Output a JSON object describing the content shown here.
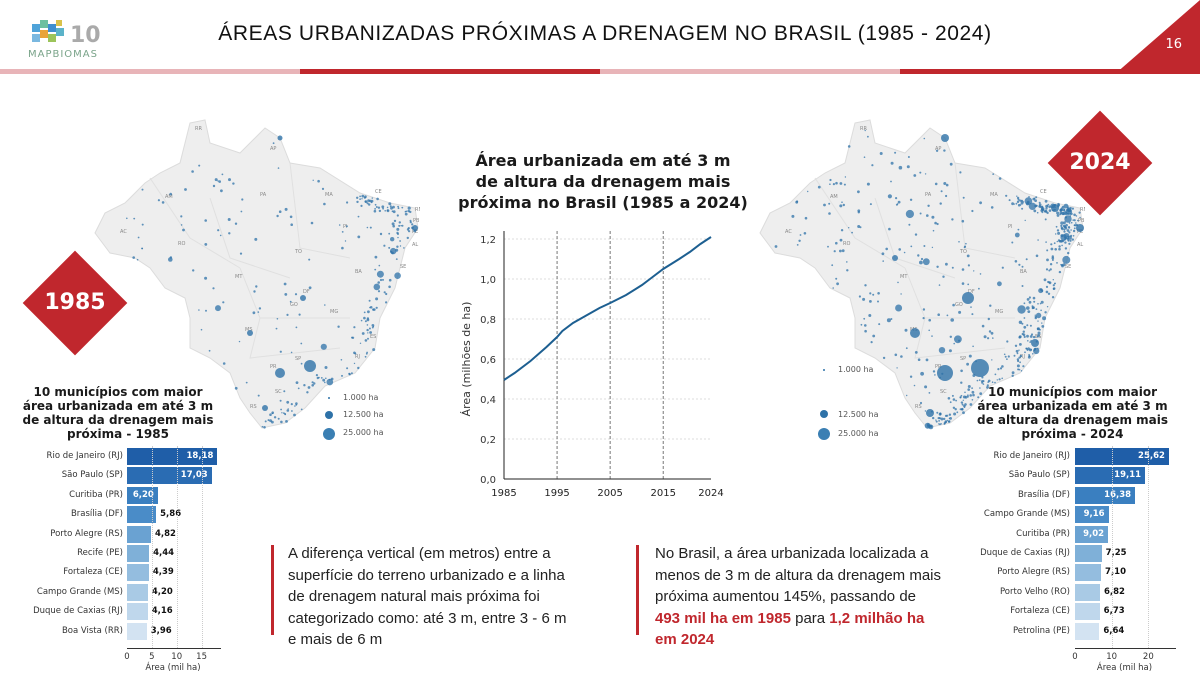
{
  "header": {
    "logo_text": "MAPBIOMAS",
    "logo_badge": "10 ANOS",
    "title": "ÁREAS URBANIZADAS PRÓXIMAS A DRENAGEM NO BRASIL (1985 - 2024)",
    "page_number": "16"
  },
  "colors": {
    "accent": "#c0272d",
    "accent_light": "#e8b4b8",
    "line": "#1d5f91",
    "dot": "#2e72a8"
  },
  "maps": [
    {
      "year_badge": "1985",
      "legend": [
        "1.000 ha",
        "12.500 ha",
        "25.000 ha"
      ]
    },
    {
      "year_badge": "2024",
      "legend": [
        "1.000 ha",
        "12.500 ha",
        "25.000 ha"
      ]
    }
  ],
  "chart_data": [
    {
      "type": "bar",
      "title": "10 municípios com maior área urbanizada em até 3 m de altura da drenagem mais próxima - 1985",
      "categories": [
        "Rio de Janeiro (RJ)",
        "São Paulo (SP)",
        "Curitiba (PR)",
        "Brasília (DF)",
        "Porto Alegre (RS)",
        "Recife (PE)",
        "Fortaleza (CE)",
        "Campo Grande (MS)",
        "Duque de Caxias (RJ)",
        "Boa Vista (RR)"
      ],
      "values": [
        18.18,
        17.03,
        6.2,
        5.86,
        4.82,
        4.44,
        4.39,
        4.2,
        4.16,
        3.96
      ],
      "value_labels": [
        "18,18",
        "17,03",
        "6,20",
        "5,86",
        "4,82",
        "4,44",
        "4,39",
        "4,20",
        "4,16",
        "3,96"
      ],
      "xlabel": "Área (mil ha)",
      "xticks": [
        "0",
        "5",
        "10",
        "15"
      ],
      "xtick_values": [
        0,
        5,
        10,
        15
      ],
      "xlim": [
        0,
        18.5
      ]
    },
    {
      "type": "line",
      "title": "Área urbanizada em até 3 m de altura da drenagem mais próxima no Brasil (1985 a 2024)",
      "title_lines": [
        "Área urbanizada em até 3 m",
        "de altura da drenagem mais",
        "próxima no Brasil (1985 a 2024)"
      ],
      "x": [
        1985,
        1987,
        1990,
        1993,
        1995,
        1996,
        1998,
        2000,
        2003,
        2005,
        2008,
        2011,
        2013,
        2015,
        2018,
        2020,
        2022,
        2024
      ],
      "y": [
        0.495,
        0.53,
        0.59,
        0.66,
        0.71,
        0.74,
        0.78,
        0.81,
        0.855,
        0.88,
        0.92,
        0.97,
        1.01,
        1.05,
        1.1,
        1.135,
        1.175,
        1.21
      ],
      "xlabel": "",
      "ylabel": "Área (milhões de ha)",
      "xticks": [
        "1985",
        "1995",
        "2005",
        "2015",
        "2024"
      ],
      "xtick_values": [
        1985,
        1995,
        2005,
        2015,
        2024
      ],
      "yticks": [
        "0,0",
        "0,2",
        "0,4",
        "0,6",
        "0,8",
        "1,0",
        "1,2"
      ],
      "ytick_values": [
        0,
        0.2,
        0.4,
        0.6,
        0.8,
        1.0,
        1.2
      ],
      "xlim": [
        1985,
        2024
      ],
      "ylim": [
        0,
        1.2
      ],
      "grid": true
    },
    {
      "type": "bar",
      "title": "10 municípios com maior área urbanizada em até 3 m de altura da drenagem mais próxima - 2024",
      "categories": [
        "Rio de Janeiro (RJ)",
        "São Paulo (SP)",
        "Brasília (DF)",
        "Campo Grande (MS)",
        "Curitiba (PR)",
        "Duque de Caxias (RJ)",
        "Porto Alegre (RS)",
        "Porto Velho (RO)",
        "Fortaleza (CE)",
        "Petrolina (PE)"
      ],
      "values": [
        25.62,
        19.11,
        16.38,
        9.16,
        9.02,
        7.25,
        7.1,
        6.82,
        6.73,
        6.64
      ],
      "value_labels": [
        "25,62",
        "19,11",
        "16,38",
        "9,16",
        "9,02",
        "7,25",
        "7,10",
        "6,82",
        "6,73",
        "6,64"
      ],
      "xlabel": "Área (mil ha)",
      "xticks": [
        "0",
        "10",
        "20"
      ],
      "xtick_values": [
        0,
        10,
        20
      ],
      "xlim": [
        0,
        27
      ]
    }
  ],
  "notes": {
    "left": "A diferença vertical (em metros) entre a superfície do terreno urbanizado e a linha de drenagem natural mais próxima foi categorizado como: até 3 m, entre 3 - 6 m e mais de 6 m",
    "right_prefix": "No Brasil, a área urbanizada localizada a menos de 3 m de altura da drenagem mais próxima aumentou 145%, passando de ",
    "right_highlight1": "493 mil ha em 1985",
    "right_mid": " para ",
    "right_highlight2": "1,2 milhão ha em 2024"
  }
}
